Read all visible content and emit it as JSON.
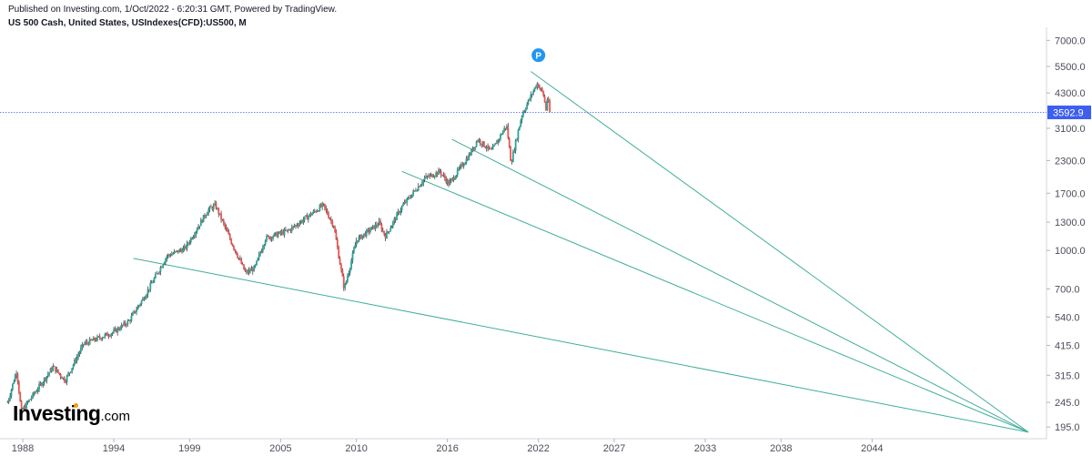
{
  "header": {
    "published_line": "Published on Investing.com, 1/Oct/2022 - 6:20:31 GMT, Powered by TradingView.",
    "symbol_line": "US 500 Cash, United States, USIndexes(CFD):US500, M"
  },
  "logo": {
    "name": "Investing",
    "suffix": ".com"
  },
  "marker": {
    "label": "P"
  },
  "colors": {
    "up_candle": "#26a69a",
    "down_candle": "#ef5350",
    "trendline": "#3fae9a",
    "price_line": "#3d5ef0",
    "price_label_bg": "#3d5ef0",
    "marker_bg": "#2196f3",
    "axis_text": "#787b86"
  },
  "chart_data": {
    "type": "candlestick",
    "title": "US 500 Cash, United States, USIndexes(CFD):US500, M",
    "timeframe": "M",
    "x_tick_labels": [
      "1988",
      "1994",
      "1999",
      "2005",
      "2010",
      "2016",
      "2022",
      "2027",
      "2033",
      "2038",
      "2044"
    ],
    "x_range": [
      1986.5,
      2055.5
    ],
    "y_scale": "log",
    "y_tick_labels": [
      "7000.0",
      "5500.0",
      "4300.0",
      "3100.0",
      "2300.0",
      "1700.0",
      "1300.0",
      "1000.0",
      "700.0",
      "540.0",
      "415.0",
      "315.0",
      "245.0",
      "195.0"
    ],
    "y_range": [
      175,
      7900
    ],
    "last_price": "3592.9",
    "last_price_value": 3592.9,
    "series_key_points": [
      {
        "x": 1987.0,
        "y": 245
      },
      {
        "x": 1987.6,
        "y": 330
      },
      {
        "x": 1987.9,
        "y": 225
      },
      {
        "x": 1990.0,
        "y": 340
      },
      {
        "x": 1990.8,
        "y": 300
      },
      {
        "x": 1992.0,
        "y": 420
      },
      {
        "x": 1994.0,
        "y": 470
      },
      {
        "x": 1995.0,
        "y": 520
      },
      {
        "x": 1996.0,
        "y": 650
      },
      {
        "x": 1997.5,
        "y": 950
      },
      {
        "x": 1998.7,
        "y": 1020
      },
      {
        "x": 2000.2,
        "y": 1450
      },
      {
        "x": 2000.7,
        "y": 1520
      },
      {
        "x": 2001.7,
        "y": 1100
      },
      {
        "x": 2002.7,
        "y": 810
      },
      {
        "x": 2003.3,
        "y": 850
      },
      {
        "x": 2004.0,
        "y": 1120
      },
      {
        "x": 2005.5,
        "y": 1200
      },
      {
        "x": 2007.8,
        "y": 1520
      },
      {
        "x": 2008.5,
        "y": 1260
      },
      {
        "x": 2009.2,
        "y": 700
      },
      {
        "x": 2010.0,
        "y": 1100
      },
      {
        "x": 2011.5,
        "y": 1290
      },
      {
        "x": 2011.9,
        "y": 1140
      },
      {
        "x": 2013.0,
        "y": 1500
      },
      {
        "x": 2014.5,
        "y": 1950
      },
      {
        "x": 2015.5,
        "y": 2080
      },
      {
        "x": 2016.1,
        "y": 1850
      },
      {
        "x": 2017.5,
        "y": 2450
      },
      {
        "x": 2018.0,
        "y": 2800
      },
      {
        "x": 2018.9,
        "y": 2500
      },
      {
        "x": 2019.9,
        "y": 3200
      },
      {
        "x": 2020.2,
        "y": 2250
      },
      {
        "x": 2020.9,
        "y": 3500
      },
      {
        "x": 2021.9,
        "y": 4700
      },
      {
        "x": 2022.3,
        "y": 4300
      },
      {
        "x": 2022.5,
        "y": 3700
      },
      {
        "x": 2022.6,
        "y": 4150
      },
      {
        "x": 2022.75,
        "y": 3592.9
      }
    ],
    "trendlines": [
      {
        "x1": 2021.5,
        "y1": 5250,
        "x2": 2054.3,
        "y2": 186
      },
      {
        "x1": 2016.3,
        "y1": 2800,
        "x2": 2054.3,
        "y2": 186
      },
      {
        "x1": 2013.0,
        "y1": 2080,
        "x2": 2054.3,
        "y2": 186
      },
      {
        "x1": 1995.3,
        "y1": 930,
        "x2": 2054.3,
        "y2": 186
      }
    ]
  }
}
